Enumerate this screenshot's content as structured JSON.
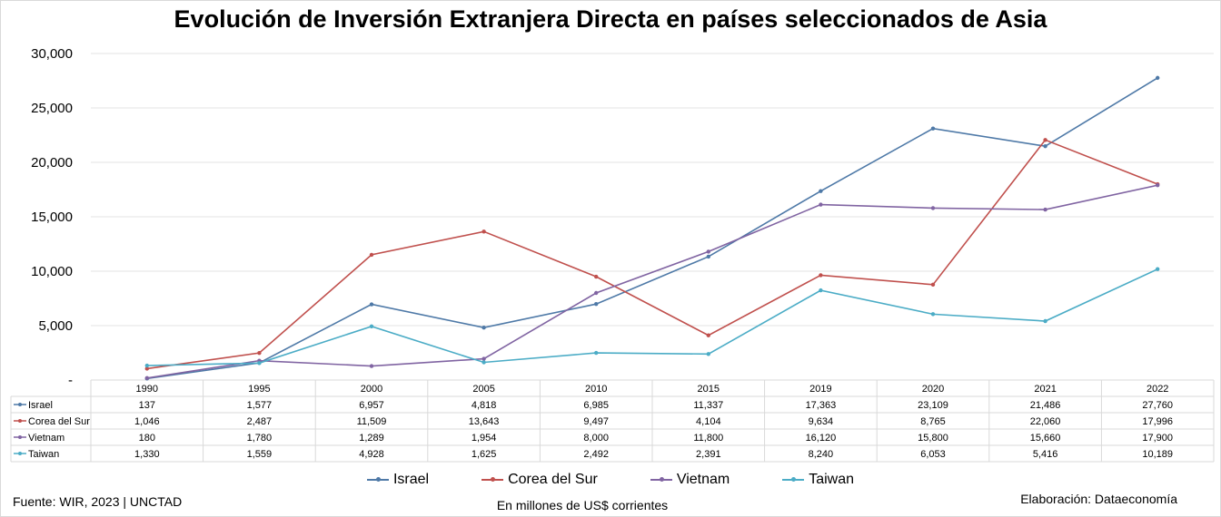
{
  "title": "Evolución de Inversión Extranjera Directa en países seleccionados de Asia",
  "footer": {
    "source": "Fuente: WIR, 2023 | UNCTAD",
    "units": "En millones de US$ corrientes",
    "credit": "Elaboración: Dataeconomía"
  },
  "chart_data": {
    "type": "line",
    "title": "Evolución de Inversión Extranjera Directa en países seleccionados de Asia",
    "ylabel": "En millones de US$ corrientes",
    "categories": [
      "1990",
      "1995",
      "2000",
      "2005",
      "2010",
      "2015",
      "2019",
      "2020",
      "2021",
      "2022"
    ],
    "ylim": [
      0,
      30000
    ],
    "yticks": [
      0,
      5000,
      10000,
      15000,
      20000,
      25000,
      30000
    ],
    "ytick_labels": [
      "-",
      "5,000",
      "10,000",
      "15,000",
      "20,000",
      "25,000",
      "30,000"
    ],
    "grid": true,
    "legend": "bottom",
    "data_table": true,
    "series": [
      {
        "name": "Israel",
        "color": "#4e79a7",
        "values": [
          137,
          1577,
          6957,
          4818,
          6985,
          11337,
          17363,
          23109,
          21486,
          27760
        ],
        "labels": [
          "137",
          "1,577",
          "6,957",
          "4,818",
          "6,985",
          "11,337",
          "17,363",
          "23,109",
          "21,486",
          "27,760"
        ]
      },
      {
        "name": "Corea del Sur",
        "color": "#c0504d",
        "values": [
          1046,
          2487,
          11509,
          13643,
          9497,
          4104,
          9634,
          8765,
          22060,
          17996
        ],
        "labels": [
          "1,046",
          "2,487",
          "11,509",
          "13,643",
          "9,497",
          "4,104",
          "9,634",
          "8,765",
          "22,060",
          "17,996"
        ]
      },
      {
        "name": "Vietnam",
        "color": "#8064a2",
        "values": [
          180,
          1780,
          1289,
          1954,
          8000,
          11800,
          16120,
          15800,
          15660,
          17900
        ],
        "labels": [
          "180",
          "1,780",
          "1,289",
          "1,954",
          "8,000",
          "11,800",
          "16,120",
          "15,800",
          "15,660",
          "17,900"
        ]
      },
      {
        "name": "Taiwan",
        "color": "#4bacc6",
        "values": [
          1330,
          1559,
          4928,
          1625,
          2492,
          2391,
          8240,
          6053,
          5416,
          10189
        ],
        "labels": [
          "1,330",
          "1,559",
          "4,928",
          "1,625",
          "2,492",
          "2,391",
          "8,240",
          "6,053",
          "5,416",
          "10,189"
        ]
      }
    ]
  }
}
